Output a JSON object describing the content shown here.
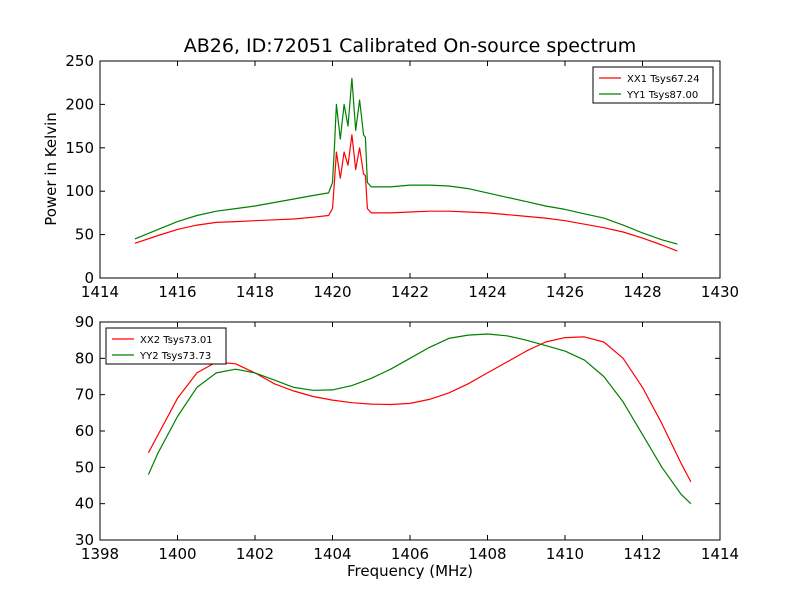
{
  "figure": {
    "title": "AB26, ID:72051 Calibrated On-source spectrum",
    "ylabel": "Power in Kelvin",
    "xlabel": "Frequency (MHz)"
  },
  "chart_data": [
    {
      "type": "line",
      "ylabel": "Power in Kelvin",
      "xlim": [
        1414,
        1430
      ],
      "ylim": [
        0,
        250
      ],
      "xticks": [
        "1414",
        "1416",
        "1418",
        "1420",
        "1422",
        "1424",
        "1426",
        "1428",
        "1430"
      ],
      "yticks": [
        "0",
        "50",
        "100",
        "150",
        "200",
        "250"
      ],
      "legend_position": "top-right",
      "grid": false,
      "series": [
        {
          "name": "XX1 Tsys67.24",
          "color": "#ff0000",
          "x": [
            1414.9,
            1415.5,
            1416,
            1416.5,
            1417,
            1417.5,
            1418,
            1418.5,
            1419,
            1419.5,
            1419.9,
            1420.0,
            1420.05,
            1420.1,
            1420.2,
            1420.3,
            1420.4,
            1420.5,
            1420.6,
            1420.7,
            1420.75,
            1420.8,
            1420.85,
            1420.9,
            1421.0,
            1421.5,
            1422,
            1422.5,
            1423,
            1423.5,
            1424,
            1424.5,
            1425,
            1425.5,
            1426,
            1426.5,
            1427,
            1427.5,
            1428,
            1428.5,
            1428.9
          ],
          "y": [
            40,
            49,
            56,
            61,
            64,
            65,
            66,
            67,
            68,
            70,
            72,
            80,
            110,
            145,
            115,
            145,
            130,
            165,
            125,
            150,
            135,
            120,
            118,
            80,
            75,
            75,
            76,
            77,
            77,
            76,
            75,
            73,
            71,
            69,
            66,
            62,
            58,
            53,
            46,
            38,
            31
          ]
        },
        {
          "name": "YY1 Tsys87.00",
          "color": "#008000",
          "x": [
            1414.9,
            1415.5,
            1416,
            1416.5,
            1417,
            1417.5,
            1418,
            1418.5,
            1419,
            1419.5,
            1419.9,
            1420.0,
            1420.05,
            1420.1,
            1420.2,
            1420.3,
            1420.4,
            1420.5,
            1420.6,
            1420.7,
            1420.75,
            1420.8,
            1420.85,
            1420.9,
            1421.0,
            1421.5,
            1422,
            1422.5,
            1423,
            1423.5,
            1424,
            1424.5,
            1425,
            1425.5,
            1426,
            1426.5,
            1427,
            1427.5,
            1428,
            1428.5,
            1428.9
          ],
          "y": [
            45,
            56,
            65,
            72,
            77,
            80,
            83,
            87,
            91,
            95,
            98,
            110,
            150,
            200,
            160,
            200,
            175,
            230,
            170,
            205,
            185,
            165,
            162,
            110,
            105,
            105,
            107,
            107,
            106,
            103,
            98,
            93,
            88,
            83,
            79,
            74,
            69,
            61,
            52,
            44,
            39
          ]
        }
      ]
    },
    {
      "type": "line",
      "xlabel": "Frequency (MHz)",
      "xlim": [
        1398,
        1414
      ],
      "ylim": [
        30,
        90
      ],
      "xticks": [
        "1398",
        "1400",
        "1402",
        "1404",
        "1406",
        "1408",
        "1410",
        "1412",
        "1414"
      ],
      "yticks": [
        "30",
        "40",
        "50",
        "60",
        "70",
        "80",
        "90"
      ],
      "legend_position": "top-left",
      "grid": false,
      "series": [
        {
          "name": "XX2 Tsys73.01",
          "color": "#ff0000",
          "x": [
            1399.25,
            1399.5,
            1400,
            1400.5,
            1401,
            1401.5,
            1402,
            1402.5,
            1403,
            1403.5,
            1404,
            1404.5,
            1405,
            1405.5,
            1406,
            1406.5,
            1407,
            1407.5,
            1408,
            1408.5,
            1409,
            1409.5,
            1410,
            1410.5,
            1411,
            1411.5,
            1412,
            1412.5,
            1413,
            1413.25
          ],
          "y": [
            54,
            59,
            69,
            76,
            79,
            78.5,
            76,
            73,
            71,
            69.5,
            68.5,
            67.8,
            67.4,
            67.3,
            67.6,
            68.7,
            70.5,
            73,
            76,
            79,
            82,
            84.5,
            85.7,
            85.9,
            84.5,
            80,
            72,
            62,
            51,
            46
          ]
        },
        {
          "name": "YY2 Tsys73.73",
          "color": "#008000",
          "x": [
            1399.25,
            1399.5,
            1400,
            1400.5,
            1401,
            1401.5,
            1402,
            1402.5,
            1403,
            1403.5,
            1404,
            1404.5,
            1405,
            1405.5,
            1406,
            1406.5,
            1407,
            1407.5,
            1408,
            1408.5,
            1409,
            1409.5,
            1410,
            1410.5,
            1411,
            1411.5,
            1412,
            1412.5,
            1413,
            1413.25
          ],
          "y": [
            48,
            54,
            64,
            72,
            76,
            77,
            76,
            74,
            72,
            71.2,
            71.3,
            72.5,
            74.5,
            77,
            80,
            83,
            85.5,
            86.4,
            86.7,
            86.2,
            85,
            83.5,
            82,
            79.5,
            75,
            68,
            59,
            50,
            42.5,
            40
          ]
        }
      ]
    }
  ]
}
